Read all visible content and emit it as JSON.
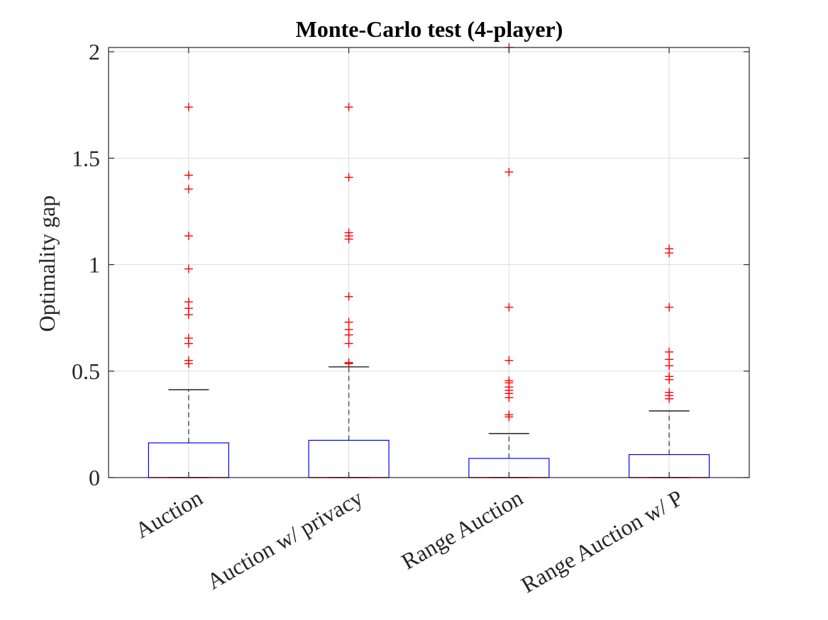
{
  "chart_data": {
    "type": "boxplot",
    "title": "Monte-Carlo test (4-player)",
    "xlabel": "",
    "ylabel": "Optimality gap",
    "ylim": [
      0,
      2.02
    ],
    "yticks": [
      0,
      0.5,
      1,
      1.5,
      2
    ],
    "ytick_labels": [
      "0",
      "0.5",
      "1",
      "1.5",
      "2"
    ],
    "grid": true,
    "colors": {
      "box": "#0000ff",
      "median": "#ff0000",
      "outlier": "#ff0000",
      "whisker": "#555555"
    },
    "categories": [
      "Auction",
      "Auction w/ privacy",
      "Range Auction",
      "Range Auction w/ P"
    ],
    "series": [
      {
        "name": "Auction",
        "q1": 0,
        "median": 0,
        "q3": 0.163,
        "whisker_low": 0,
        "whisker_high": 0.413,
        "outliers": [
          0.535,
          0.55,
          0.63,
          0.655,
          0.765,
          0.795,
          0.825,
          0.98,
          1.135,
          1.355,
          1.42,
          1.74
        ]
      },
      {
        "name": "Auction w/ privacy",
        "q1": 0,
        "median": 0,
        "q3": 0.175,
        "whisker_low": 0,
        "whisker_high": 0.52,
        "outliers": [
          0.535,
          0.54,
          0.63,
          0.67,
          0.695,
          0.73,
          0.85,
          1.12,
          1.135,
          1.15,
          1.41,
          1.74
        ]
      },
      {
        "name": "Range Auction",
        "q1": 0,
        "median": 0,
        "q3": 0.09,
        "whisker_low": 0,
        "whisker_high": 0.207,
        "outliers": [
          0.285,
          0.295,
          0.375,
          0.395,
          0.41,
          0.425,
          0.445,
          0.455,
          0.55,
          0.8,
          1.435,
          2.02
        ]
      },
      {
        "name": "Range Auction w/ P",
        "q1": 0,
        "median": 0,
        "q3": 0.108,
        "whisker_low": 0,
        "whisker_high": 0.313,
        "outliers": [
          0.37,
          0.385,
          0.4,
          0.46,
          0.475,
          0.525,
          0.555,
          0.59,
          0.8,
          1.055,
          1.075
        ]
      }
    ]
  }
}
